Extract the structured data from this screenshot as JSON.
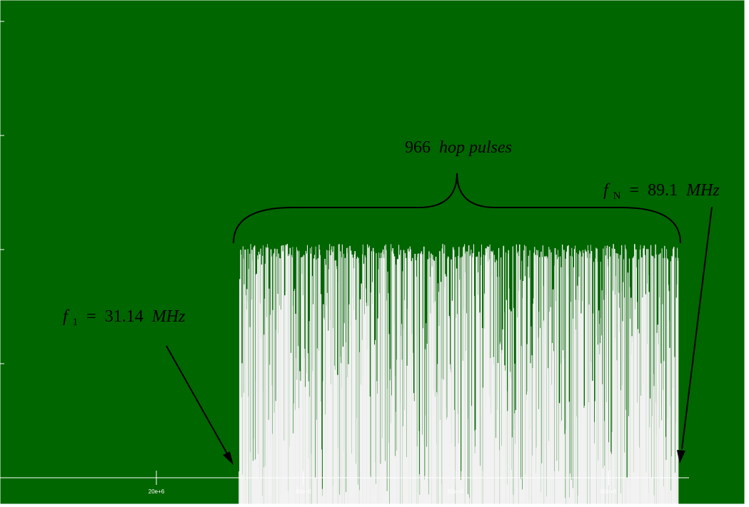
{
  "chart_data": {
    "type": "bar",
    "title": "",
    "xlabel": "",
    "ylabel": "",
    "x_ticks": [
      "20e+6",
      "40e+6",
      "60e+6",
      "80e+6"
    ],
    "hop_count": 966,
    "f1_mhz": 31.14,
    "fN_mhz": 89.1,
    "annotations": {
      "brace_text_number": "966",
      "brace_text_label": "hop  pulses",
      "left_label_symbol": "f",
      "left_label_subscript": "1",
      "left_label_equals": "=",
      "left_label_value": "31.14",
      "left_label_unit": "MHz",
      "right_label_symbol": "f",
      "right_label_subscript": "N",
      "right_label_equals": "=",
      "right_label_value": "89.1",
      "right_label_unit": "MHz"
    },
    "grid": false,
    "colors": {
      "background": "#006600",
      "bars": "#f2f2f2",
      "axis": "#ffffff",
      "annotation": "#000000",
      "frame": "#ffffff"
    }
  }
}
